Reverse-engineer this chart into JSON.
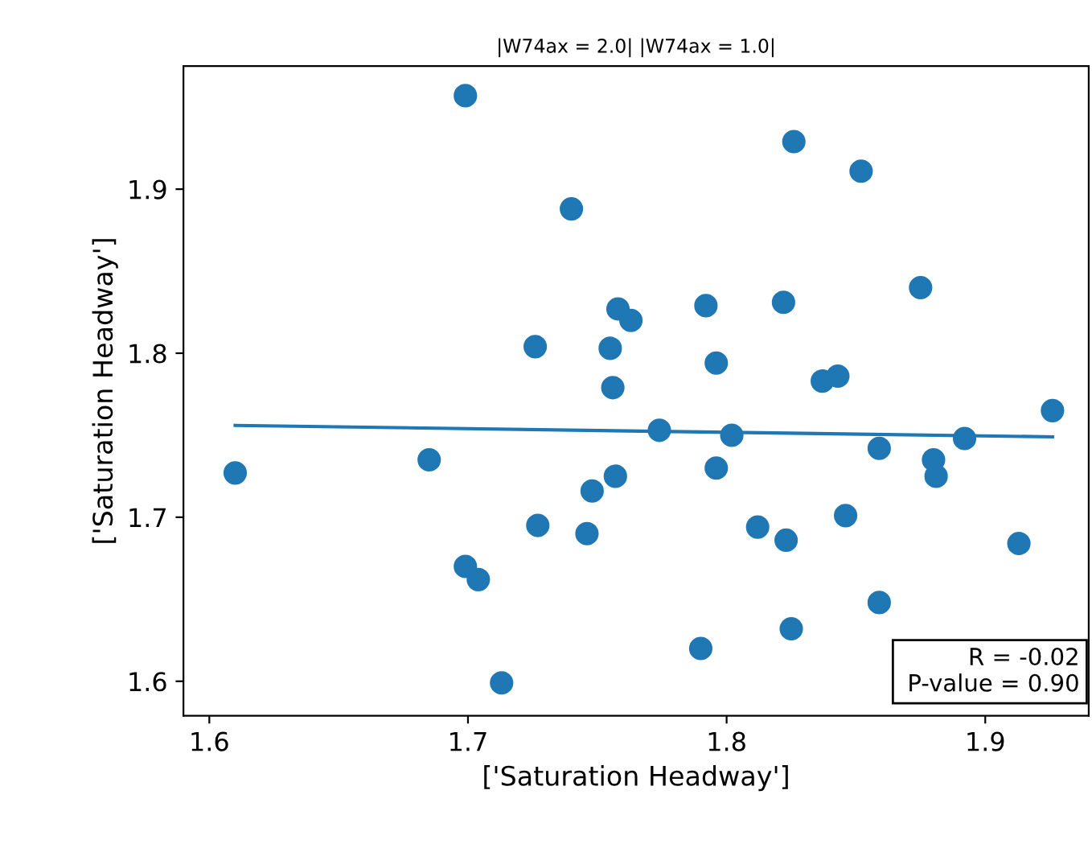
{
  "chart_data": {
    "type": "scatter",
    "title": "|W74ax = 2.0| |W74ax = 1.0|",
    "xlabel": "['Saturation Headway']",
    "ylabel": "['Saturation Headway']",
    "xlim": [
      1.59,
      1.94
    ],
    "ylim": [
      1.579,
      1.975
    ],
    "xticks": [
      1.6,
      1.7,
      1.8,
      1.9
    ],
    "yticks": [
      1.6,
      1.7,
      1.8,
      1.9
    ],
    "grid": false,
    "series": [
      {
        "marker": "circle",
        "color": "#1f77b4",
        "x": [
          1.61,
          1.699,
          1.826,
          1.852,
          1.74,
          1.875,
          1.758,
          1.763,
          1.792,
          1.822,
          1.726,
          1.755,
          1.796,
          1.756,
          1.837,
          1.843,
          1.774,
          1.802,
          1.892,
          1.926,
          1.685,
          1.859,
          1.88,
          1.881,
          1.796,
          1.757,
          1.748,
          1.727,
          1.746,
          1.812,
          1.823,
          1.846,
          1.913,
          1.699,
          1.704,
          1.859,
          1.825,
          1.79,
          1.713
        ],
        "values": [
          1.727,
          1.957,
          1.929,
          1.911,
          1.888,
          1.84,
          1.827,
          1.82,
          1.829,
          1.831,
          1.804,
          1.803,
          1.794,
          1.779,
          1.783,
          1.786,
          1.753,
          1.75,
          1.748,
          1.765,
          1.735,
          1.742,
          1.735,
          1.725,
          1.73,
          1.725,
          1.716,
          1.695,
          1.69,
          1.694,
          1.686,
          1.701,
          1.684,
          1.67,
          1.662,
          1.648,
          1.632,
          1.62,
          1.599
        ]
      },
      {
        "type": "line",
        "marker": "none",
        "color": "#1f77b4",
        "x": [
          1.61,
          1.926
        ],
        "values": [
          1.756,
          1.749
        ]
      }
    ],
    "annotations": [
      "R = -0.02\n P-value = 0.90"
    ]
  }
}
